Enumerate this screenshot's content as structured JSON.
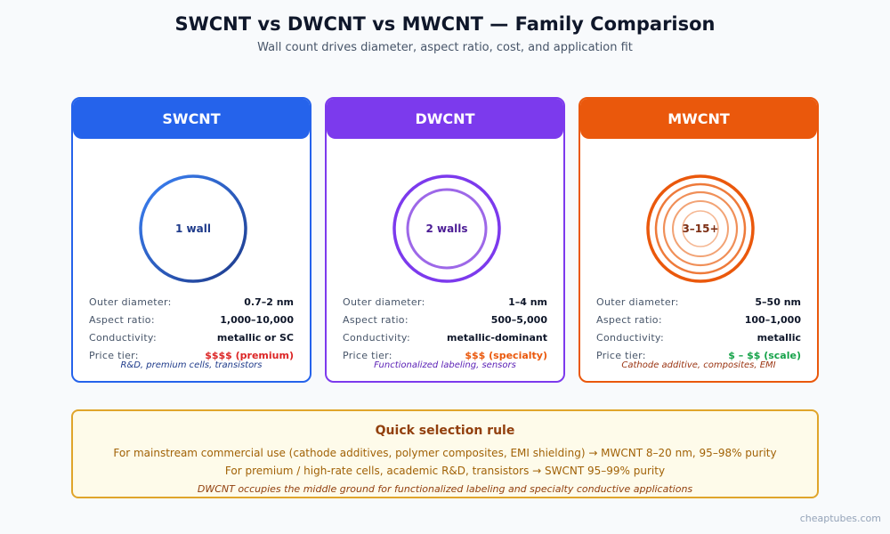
{
  "header": {
    "title": "SWCNT vs DWCNT vs MWCNT — Family Comparison",
    "subtitle": "Wall count drives diameter, aspect ratio, cost, and application fit"
  },
  "colors": {
    "swcnt": "#2563eb",
    "dwcnt": "#7c3aed",
    "mwcnt": "#ea580c",
    "price_red": "#dc2626",
    "price_orange": "#ea580c",
    "price_green": "#16a34a"
  },
  "spec_labels": {
    "outer_diameter": "Outer diameter:",
    "aspect_ratio": "Aspect ratio:",
    "conductivity": "Conductivity:",
    "price_tier": "Price tier:"
  },
  "cards": [
    {
      "name": "SWCNT",
      "wall_label": "1 wall",
      "wall_count": 1,
      "outer_diameter": "0.7–2 nm",
      "aspect_ratio": "1,000–10,000",
      "conductivity": "metallic or SC",
      "price_tier": "$$$$ (premium)",
      "applications": "R&D, premium cells, transistors"
    },
    {
      "name": "DWCNT",
      "wall_label": "2 walls",
      "wall_count": 2,
      "outer_diameter": "1–4 nm",
      "aspect_ratio": "500–5,000",
      "conductivity": "metallic-dominant",
      "price_tier": "$$$ (specialty)",
      "applications": "Functionalized labeling, sensors"
    },
    {
      "name": "MWCNT",
      "wall_label": "3–15+",
      "wall_count": 5,
      "outer_diameter": "5–50 nm",
      "aspect_ratio": "100–1,000",
      "conductivity": "metallic",
      "price_tier": "$ – $$ (scale)",
      "applications": "Cathode additive, composites, EMI"
    }
  ],
  "selection_rule": {
    "title": "Quick selection rule",
    "line1": "For mainstream commercial use (cathode additives, polymer composites, EMI shielding) → MWCNT 8–20 nm, 95–98% purity",
    "line2": "For premium / high-rate cells, academic R&D, transistors → SWCNT 95–99% purity",
    "note": "DWCNT occupies the middle ground for functionalized labeling and specialty conductive applications"
  },
  "watermark": "cheaptubes.com"
}
